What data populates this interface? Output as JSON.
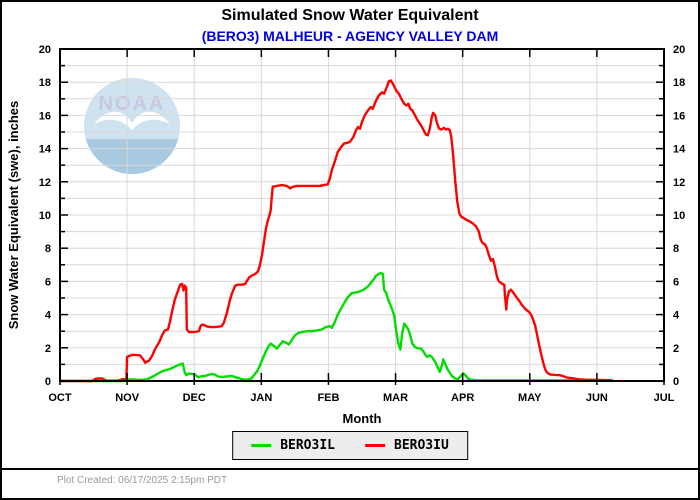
{
  "watermark": {
    "text": "NOAA"
  },
  "footer": {
    "created": "Plot Created: 06/17/2025 2:15pm PDT"
  },
  "chart_data": {
    "type": "line",
    "title": "Simulated Snow Water Equivalent",
    "subtitle": "(BERO3) MALHEUR - AGENCY VALLEY DAM",
    "xlabel": "Month",
    "ylabel": "Snow Water Equivalent (swe),  inches",
    "x_categories": [
      "OCT",
      "NOV",
      "DEC",
      "JAN",
      "FEB",
      "MAR",
      "APR",
      "MAY",
      "JUN",
      "JUL"
    ],
    "x_months_span": 9,
    "ylim": [
      0,
      20
    ],
    "y_tick_step": 2,
    "grid": true,
    "legend_position": "bottom",
    "colors": {
      "grid": "#d8d8d8",
      "frame": "#000000",
      "subtitle": "#0000dd",
      "footer_text": "#999999"
    },
    "series": [
      {
        "name": "BERO3IL",
        "color": "#00dd00",
        "points": [
          [
            0,
            0
          ],
          [
            0.92,
            0
          ],
          [
            0.98,
            0.05
          ],
          [
            1.04,
            0.1
          ],
          [
            1.15,
            0.08
          ],
          [
            1.22,
            0.07
          ],
          [
            1.3,
            0.1
          ],
          [
            1.34,
            0.18
          ],
          [
            1.4,
            0.3
          ],
          [
            1.46,
            0.45
          ],
          [
            1.52,
            0.58
          ],
          [
            1.58,
            0.66
          ],
          [
            1.64,
            0.72
          ],
          [
            1.7,
            0.84
          ],
          [
            1.76,
            0.95
          ],
          [
            1.8,
            1.02
          ],
          [
            1.83,
            1.05
          ],
          [
            1.86,
            0.5
          ],
          [
            1.88,
            0.35
          ],
          [
            1.92,
            0.45
          ],
          [
            1.97,
            0.42
          ],
          [
            2.01,
            0.38
          ],
          [
            2.06,
            0.23
          ],
          [
            2.1,
            0.28
          ],
          [
            2.16,
            0.3
          ],
          [
            2.22,
            0.38
          ],
          [
            2.27,
            0.42
          ],
          [
            2.31,
            0.38
          ],
          [
            2.35,
            0.28
          ],
          [
            2.41,
            0.25
          ],
          [
            2.49,
            0.28
          ],
          [
            2.56,
            0.3
          ],
          [
            2.64,
            0.2
          ],
          [
            2.71,
            0.1
          ],
          [
            2.79,
            0.08
          ],
          [
            2.85,
            0.15
          ],
          [
            2.89,
            0.35
          ],
          [
            2.94,
            0.6
          ],
          [
            2.98,
            0.95
          ],
          [
            3.02,
            1.35
          ],
          [
            3.07,
            1.8
          ],
          [
            3.11,
            2.1
          ],
          [
            3.14,
            2.25
          ],
          [
            3.19,
            2.1
          ],
          [
            3.23,
            1.95
          ],
          [
            3.28,
            2.2
          ],
          [
            3.32,
            2.4
          ],
          [
            3.37,
            2.3
          ],
          [
            3.41,
            2.2
          ],
          [
            3.46,
            2.5
          ],
          [
            3.5,
            2.75
          ],
          [
            3.55,
            2.9
          ],
          [
            3.61,
            2.95
          ],
          [
            3.68,
            3
          ],
          [
            3.76,
            3
          ],
          [
            3.83,
            3.05
          ],
          [
            3.9,
            3.1
          ],
          [
            3.96,
            3.25
          ],
          [
            4.02,
            3.3
          ],
          [
            4.05,
            3.2
          ],
          [
            4.1,
            3.6
          ],
          [
            4.14,
            4
          ],
          [
            4.2,
            4.45
          ],
          [
            4.25,
            4.8
          ],
          [
            4.29,
            5.05
          ],
          [
            4.35,
            5.3
          ],
          [
            4.43,
            5.35
          ],
          [
            4.5,
            5.45
          ],
          [
            4.54,
            5.55
          ],
          [
            4.59,
            5.7
          ],
          [
            4.63,
            5.9
          ],
          [
            4.68,
            6.15
          ],
          [
            4.71,
            6.35
          ],
          [
            4.75,
            6.45
          ],
          [
            4.78,
            6.5
          ],
          [
            4.81,
            6.45
          ],
          [
            4.83,
            5.5
          ],
          [
            4.86,
            5.3
          ],
          [
            4.89,
            4.9
          ],
          [
            4.92,
            4.6
          ],
          [
            4.95,
            4.3
          ],
          [
            4.98,
            3.95
          ],
          [
            5.01,
            3
          ],
          [
            5.04,
            2.3
          ],
          [
            5.07,
            1.9
          ],
          [
            5.1,
            2.9
          ],
          [
            5.13,
            3.45
          ],
          [
            5.16,
            3.3
          ],
          [
            5.19,
            3.1
          ],
          [
            5.22,
            2.75
          ],
          [
            5.25,
            2.25
          ],
          [
            5.29,
            2.05
          ],
          [
            5.33,
            1.97
          ],
          [
            5.38,
            1.95
          ],
          [
            5.41,
            1.8
          ],
          [
            5.44,
            1.6
          ],
          [
            5.47,
            1.45
          ],
          [
            5.51,
            1.55
          ],
          [
            5.54,
            1.45
          ],
          [
            5.59,
            1.15
          ],
          [
            5.63,
            0.8
          ],
          [
            5.66,
            0.55
          ],
          [
            5.69,
            0.95
          ],
          [
            5.71,
            1.3
          ],
          [
            5.74,
            1.05
          ],
          [
            5.77,
            0.75
          ],
          [
            5.8,
            0.55
          ],
          [
            5.84,
            0.3
          ],
          [
            5.89,
            0.15
          ],
          [
            5.92,
            0.07
          ],
          [
            5.96,
            0.25
          ],
          [
            6.01,
            0.45
          ],
          [
            6.04,
            0.35
          ],
          [
            6.08,
            0.15
          ],
          [
            6.12,
            0.08
          ],
          [
            6.21,
            0.05
          ],
          [
            6.36,
            0.04
          ],
          [
            6.59,
            0.04
          ],
          [
            6.88,
            0.04
          ],
          [
            7.26,
            0.04
          ],
          [
            7.63,
            0.04
          ],
          [
            7.93,
            0.04
          ],
          [
            8.22,
            0.04
          ]
        ]
      },
      {
        "name": "BERO3IU",
        "color": "#ff0000",
        "points": [
          [
            0,
            0
          ],
          [
            0.48,
            0
          ],
          [
            0.53,
            0.13
          ],
          [
            0.58,
            0.15
          ],
          [
            0.63,
            0.15
          ],
          [
            0.69,
            0.02
          ],
          [
            0.86,
            0.02
          ],
          [
            0.93,
            0.1
          ],
          [
            0.99,
            0.1
          ],
          [
            1,
            1.45
          ],
          [
            1.08,
            1.58
          ],
          [
            1.19,
            1.55
          ],
          [
            1.24,
            1.3
          ],
          [
            1.27,
            1.1
          ],
          [
            1.33,
            1.25
          ],
          [
            1.37,
            1.5
          ],
          [
            1.42,
            1.95
          ],
          [
            1.48,
            2.35
          ],
          [
            1.52,
            2.75
          ],
          [
            1.56,
            3.05
          ],
          [
            1.61,
            3.1
          ],
          [
            1.64,
            3.6
          ],
          [
            1.67,
            4.2
          ],
          [
            1.71,
            4.9
          ],
          [
            1.76,
            5.45
          ],
          [
            1.79,
            5.8
          ],
          [
            1.82,
            5.85
          ],
          [
            1.84,
            5.45
          ],
          [
            1.86,
            5.75
          ],
          [
            1.88,
            5.6
          ],
          [
            1.89,
            3.1
          ],
          [
            1.92,
            2.95
          ],
          [
            2,
            2.95
          ],
          [
            2.07,
            3
          ],
          [
            2.1,
            3.35
          ],
          [
            2.13,
            3.4
          ],
          [
            2.18,
            3.3
          ],
          [
            2.24,
            3.25
          ],
          [
            2.32,
            3.25
          ],
          [
            2.41,
            3.3
          ],
          [
            2.44,
            3.5
          ],
          [
            2.49,
            4.15
          ],
          [
            2.53,
            4.85
          ],
          [
            2.56,
            5.25
          ],
          [
            2.61,
            5.75
          ],
          [
            2.65,
            5.8
          ],
          [
            2.71,
            5.8
          ],
          [
            2.76,
            5.85
          ],
          [
            2.79,
            6.05
          ],
          [
            2.82,
            6.25
          ],
          [
            2.86,
            6.35
          ],
          [
            2.91,
            6.45
          ],
          [
            2.95,
            6.6
          ],
          [
            2.98,
            7
          ],
          [
            3.01,
            7.6
          ],
          [
            3.04,
            8.4
          ],
          [
            3.07,
            9.2
          ],
          [
            3.1,
            9.7
          ],
          [
            3.13,
            10.1
          ],
          [
            3.14,
            10.3
          ],
          [
            3.16,
            11.3
          ],
          [
            3.17,
            11.7
          ],
          [
            3.23,
            11.75
          ],
          [
            3.31,
            11.8
          ],
          [
            3.38,
            11.75
          ],
          [
            3.43,
            11.6
          ],
          [
            3.47,
            11.7
          ],
          [
            3.53,
            11.75
          ],
          [
            3.61,
            11.75
          ],
          [
            3.76,
            11.75
          ],
          [
            3.87,
            11.75
          ],
          [
            3.93,
            11.8
          ],
          [
            3.99,
            11.85
          ],
          [
            4.02,
            12.2
          ],
          [
            4.05,
            12.7
          ],
          [
            4.1,
            13.3
          ],
          [
            4.14,
            13.8
          ],
          [
            4.19,
            14.1
          ],
          [
            4.23,
            14.3
          ],
          [
            4.28,
            14.35
          ],
          [
            4.32,
            14.4
          ],
          [
            4.37,
            14.7
          ],
          [
            4.41,
            15.1
          ],
          [
            4.44,
            15.3
          ],
          [
            4.47,
            15.2
          ],
          [
            4.5,
            15.6
          ],
          [
            4.54,
            16
          ],
          [
            4.59,
            16.3
          ],
          [
            4.63,
            16.5
          ],
          [
            4.66,
            16.4
          ],
          [
            4.71,
            16.9
          ],
          [
            4.75,
            17.2
          ],
          [
            4.8,
            17.4
          ],
          [
            4.83,
            17.3
          ],
          [
            4.87,
            17.7
          ],
          [
            4.9,
            18.05
          ],
          [
            4.93,
            18.1
          ],
          [
            4.96,
            17.9
          ],
          [
            5.01,
            17.5
          ],
          [
            5.05,
            17.3
          ],
          [
            5.1,
            16.9
          ],
          [
            5.13,
            16.7
          ],
          [
            5.16,
            16.6
          ],
          [
            5.19,
            16.7
          ],
          [
            5.22,
            16.4
          ],
          [
            5.25,
            16.3
          ],
          [
            5.29,
            16
          ],
          [
            5.33,
            15.7
          ],
          [
            5.38,
            15.4
          ],
          [
            5.42,
            15.1
          ],
          [
            5.45,
            14.85
          ],
          [
            5.48,
            14.8
          ],
          [
            5.51,
            15.2
          ],
          [
            5.54,
            15.9
          ],
          [
            5.56,
            16.15
          ],
          [
            5.59,
            16
          ],
          [
            5.62,
            15.5
          ],
          [
            5.65,
            15.2
          ],
          [
            5.68,
            15.15
          ],
          [
            5.72,
            15.25
          ],
          [
            5.75,
            15.15
          ],
          [
            5.78,
            15.2
          ],
          [
            5.81,
            15.1
          ],
          [
            5.83,
            14.7
          ],
          [
            5.86,
            13.5
          ],
          [
            5.89,
            12
          ],
          [
            5.92,
            10.8
          ],
          [
            5.95,
            10.1
          ],
          [
            5.98,
            9.9
          ],
          [
            6.02,
            9.8
          ],
          [
            6.06,
            9.7
          ],
          [
            6.11,
            9.6
          ],
          [
            6.15,
            9.5
          ],
          [
            6.2,
            9.3
          ],
          [
            6.24,
            9
          ],
          [
            6.27,
            8.5
          ],
          [
            6.3,
            8.3
          ],
          [
            6.33,
            8.25
          ],
          [
            6.36,
            8
          ],
          [
            6.39,
            7.6
          ],
          [
            6.42,
            7.25
          ],
          [
            6.45,
            7.35
          ],
          [
            6.48,
            6.9
          ],
          [
            6.51,
            6.3
          ],
          [
            6.54,
            6
          ],
          [
            6.59,
            5.85
          ],
          [
            6.62,
            5.8
          ],
          [
            6.63,
            5.2
          ],
          [
            6.65,
            4.3
          ],
          [
            6.66,
            4.9
          ],
          [
            6.69,
            5.4
          ],
          [
            6.72,
            5.5
          ],
          [
            6.75,
            5.35
          ],
          [
            6.79,
            5.1
          ],
          [
            6.84,
            4.85
          ],
          [
            6.88,
            4.6
          ],
          [
            6.93,
            4.35
          ],
          [
            6.99,
            4.15
          ],
          [
            7.02,
            4
          ],
          [
            7.05,
            3.7
          ],
          [
            7.08,
            3.35
          ],
          [
            7.11,
            2.75
          ],
          [
            7.14,
            2.15
          ],
          [
            7.17,
            1.6
          ],
          [
            7.2,
            1.1
          ],
          [
            7.23,
            0.7
          ],
          [
            7.26,
            0.5
          ],
          [
            7.3,
            0.4
          ],
          [
            7.38,
            0.37
          ],
          [
            7.45,
            0.35
          ],
          [
            7.49,
            0.3
          ],
          [
            7.54,
            0.22
          ],
          [
            7.6,
            0.18
          ],
          [
            7.66,
            0.15
          ],
          [
            7.73,
            0.1
          ],
          [
            7.82,
            0.08
          ],
          [
            7.93,
            0.07
          ],
          [
            8.05,
            0.06
          ],
          [
            8.15,
            0.05
          ],
          [
            8.22,
            0.05
          ]
        ]
      }
    ]
  }
}
